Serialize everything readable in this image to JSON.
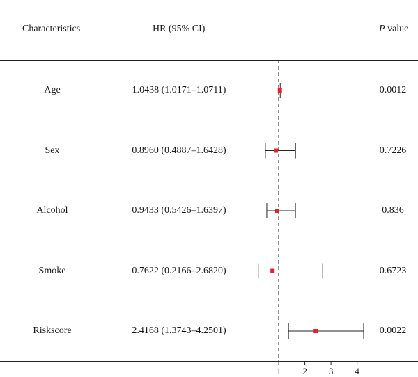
{
  "header": {
    "characteristics": "Characteristics",
    "hr": "HR (95% CI)",
    "p_italic": "P",
    "p_rest": " value"
  },
  "rows": [
    {
      "name": "Age",
      "hr_text": "1.0438 (1.0171–1.0711)",
      "p": "0.0012"
    },
    {
      "name": "Sex",
      "hr_text": "0.8960 (0.4887–1.6428)",
      "p": "0.7226"
    },
    {
      "name": "Alcohol",
      "hr_text": "0.9433 (0.5426–1.6397)",
      "p": "0.836"
    },
    {
      "name": "Smoke",
      "hr_text": "0.7622 (0.2166–2.6820)",
      "p": "0.6723"
    },
    {
      "name": "Riskscore",
      "hr_text": "2.4168 (1.3743–4.2501)",
      "p": "0.0022"
    }
  ],
  "colors": {
    "point": "#e8202a",
    "line": "#222222"
  },
  "chart_data": {
    "type": "forest",
    "reference_line": 1,
    "xticks": [
      1,
      2,
      3,
      4
    ],
    "xlim": [
      0,
      4.5
    ],
    "categories": [
      "Age",
      "Sex",
      "Alcohol",
      "Smoke",
      "Riskscore"
    ],
    "series": [
      {
        "hr": 1.0438,
        "lower": 1.0171,
        "upper": 1.0711
      },
      {
        "hr": 0.896,
        "lower": 0.4887,
        "upper": 1.6428
      },
      {
        "hr": 0.9433,
        "lower": 0.5426,
        "upper": 1.6397
      },
      {
        "hr": 0.7622,
        "lower": 0.2166,
        "upper": 2.682
      },
      {
        "hr": 2.4168,
        "lower": 1.3743,
        "upper": 4.2501
      }
    ]
  }
}
